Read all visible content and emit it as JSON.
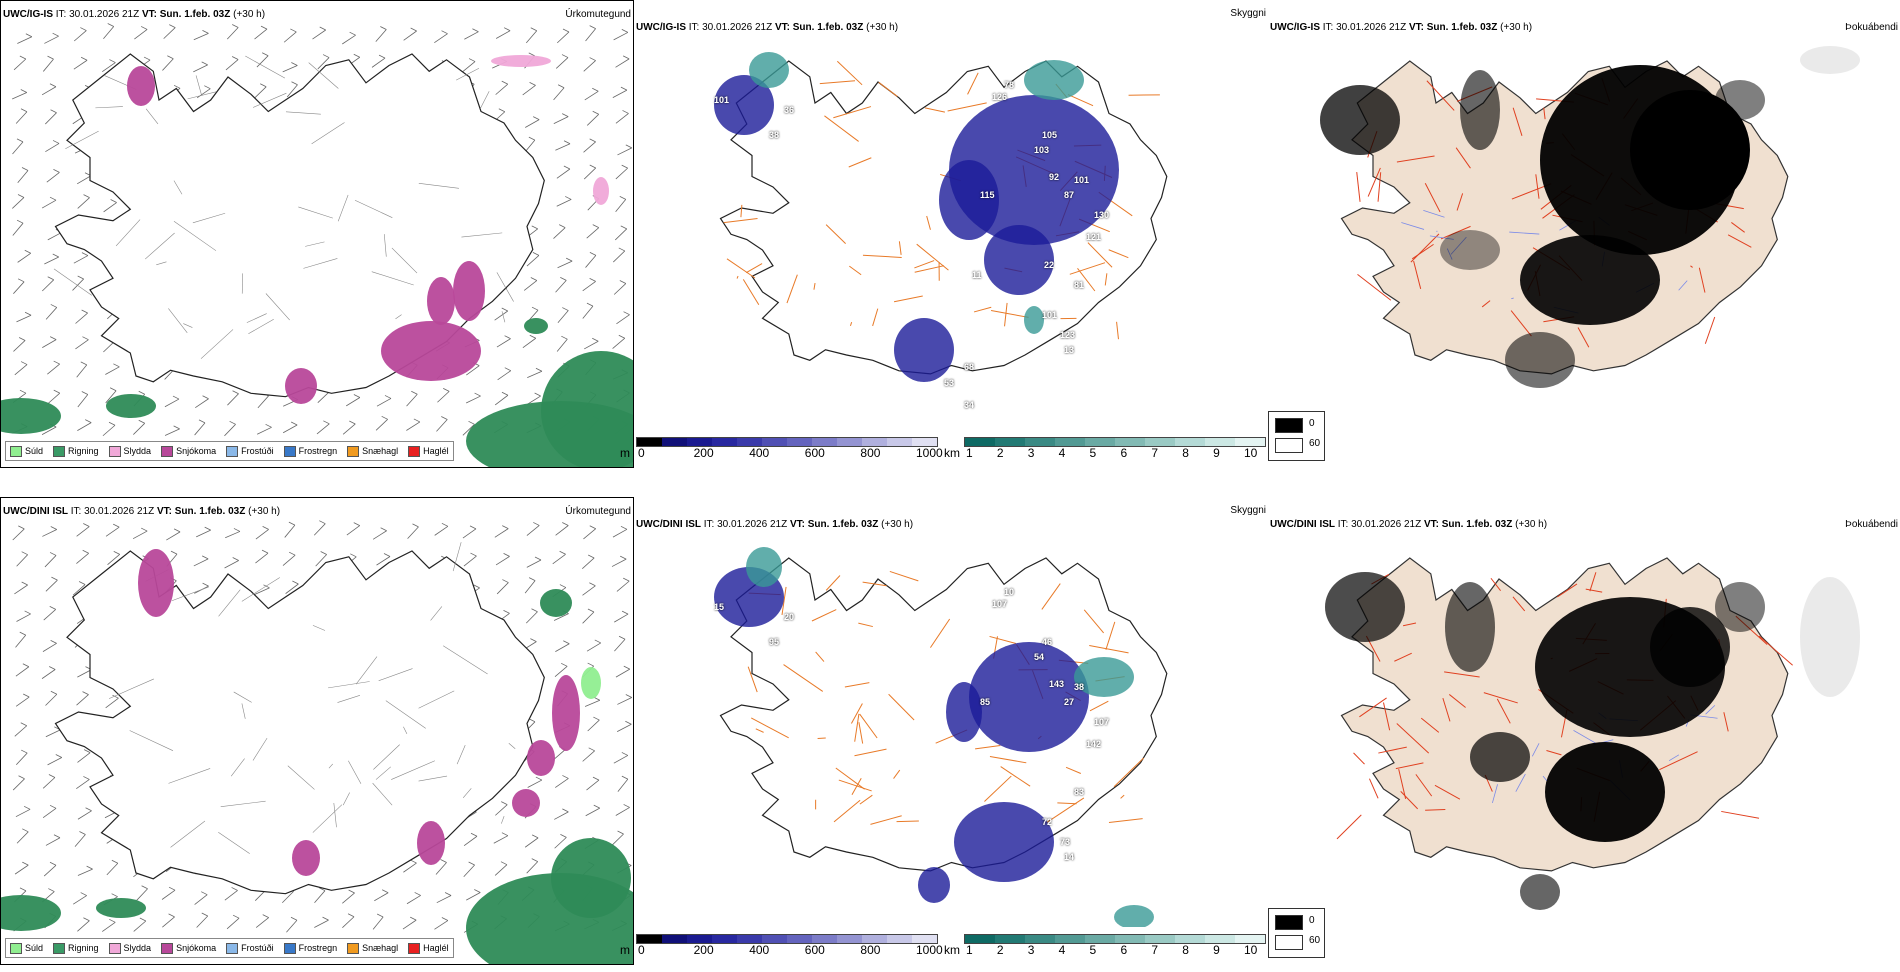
{
  "rows": [
    {
      "model": "UWC/IG-IS",
      "it_label": "IT:",
      "it_value": "30.01.2026 21Z",
      "vt_label": "VT:",
      "vt_value": "Sun. 1.feb. 03Z",
      "offset": "(+30 h)",
      "precip_title": "Úrkomutegund",
      "cloud_title": "Skyggni",
      "fog_title": "Þokuábendi",
      "vis_values": [
        "78",
        "126",
        "101",
        "36",
        "38",
        "105",
        "103",
        "92",
        "101",
        "87",
        "130",
        "121",
        "115",
        "81",
        "101",
        "123",
        "13",
        "68",
        "53",
        "34",
        "11",
        "22"
      ]
    },
    {
      "model": "UWC/DINI ISL",
      "it_label": "IT:",
      "it_value": "30.01.2026 21Z",
      "vt_label": "VT:",
      "vt_value": "Sun. 1.feb. 03Z",
      "offset": "(+30 h)",
      "precip_title": "Úrkomutegund",
      "cloud_title": "Skyggni",
      "fog_title": "Þokuábendi",
      "vis_values": [
        "10",
        "107",
        "15",
        "20",
        "95",
        "46",
        "54",
        "143",
        "38",
        "27",
        "107",
        "142",
        "85",
        "83",
        "72",
        "73",
        "14"
      ]
    }
  ],
  "precip_legend": [
    {
      "label": "Súld",
      "color": "#90ee90"
    },
    {
      "label": "Rigning",
      "color": "#3a9a66"
    },
    {
      "label": "Slydda",
      "color": "#f0a8d8"
    },
    {
      "label": "Snjókoma",
      "color": "#b8489a"
    },
    {
      "label": "Frostúði",
      "color": "#8ab8e8"
    },
    {
      "label": "Frostregn",
      "color": "#3878c8"
    },
    {
      "label": "Snæhagl",
      "color": "#f09a20"
    },
    {
      "label": "Haglél",
      "color": "#e82020"
    }
  ],
  "ceiling_scale": {
    "unit": "m",
    "ticks": [
      "0",
      "200",
      "400",
      "600",
      "800",
      "1000"
    ],
    "colors": [
      "#000000",
      "#101078",
      "#1a1a90",
      "#2828a0",
      "#3a3aaa",
      "#5050b4",
      "#6464be",
      "#7c7cc8",
      "#9494d2",
      "#b0b0de",
      "#c8c8e8",
      "#e0e0f2"
    ]
  },
  "visibility_scale": {
    "unit": "km",
    "ticks": [
      "1",
      "2",
      "3",
      "4",
      "5",
      "6",
      "7",
      "8",
      "9",
      "10"
    ],
    "colors": [
      "#0e6a64",
      "#227a74",
      "#3a8a84",
      "#529a94",
      "#6aaaa4",
      "#82bab4",
      "#9acac4",
      "#b4dad6",
      "#cce8e4",
      "#e4f4f2"
    ]
  },
  "fog_scale": {
    "labels": [
      "0",
      "60"
    ],
    "colors": [
      "#000000",
      "#ffffff"
    ]
  },
  "colors": {
    "road": "#e87a28",
    "road_fog": "#e04020",
    "land_fog": "#f0e0d0",
    "ceiling": "#1c1c98",
    "vis": "#3a9a96",
    "rain": "#2e8b57",
    "snow": "#b8489a"
  }
}
